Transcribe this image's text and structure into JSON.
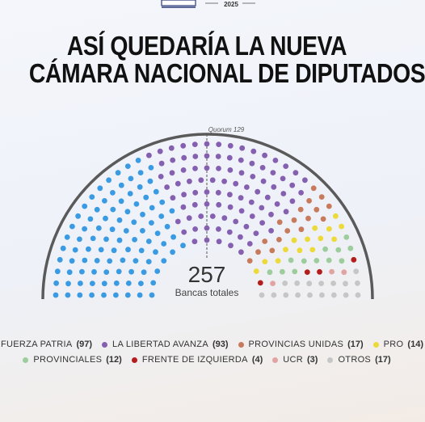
{
  "header": {
    "year": "2025"
  },
  "title_line1": "ASÍ QUEDARÍA LA NUEVA",
  "title_line2": "CÁMARA NACIONAL DE DIPUTADOS",
  "quorum_label": "Quorum 129",
  "total_number": "257",
  "total_label": "Bancas totales",
  "chart_data": {
    "type": "hemicycle",
    "total": 257,
    "quorum": 129,
    "rows": 9,
    "series": [
      {
        "name": "FUERZA PATRIA",
        "value": 97,
        "color": "#3a9be2"
      },
      {
        "name": "LA LIBERTAD AVANZA",
        "value": 93,
        "color": "#8560b0"
      },
      {
        "name": "PROVINCIAS UNIDAS",
        "value": 17,
        "color": "#c87a5c"
      },
      {
        "name": "PRO",
        "value": 14,
        "color": "#ecd93a"
      },
      {
        "name": "PROVINCIALES",
        "value": 12,
        "color": "#9dcd9c"
      },
      {
        "name": "FRENTE DE IZQUIERDA",
        "value": 4,
        "color": "#b51c1c"
      },
      {
        "name": "UCR",
        "value": 3,
        "color": "#e2a3a3"
      },
      {
        "name": "OTROS",
        "value": 17,
        "color": "#c6c6c6"
      }
    ]
  },
  "legend_rows": [
    [
      {
        "name": "FUERZA PATRIA",
        "count": "(97)",
        "color": "#3a9be2"
      },
      {
        "name": "LA LIBERTAD AVANZA",
        "count": "(93)",
        "color": "#8560b0"
      },
      {
        "name": "PROVINCIAS UNIDAS",
        "count": "(17)",
        "color": "#c87a5c"
      },
      {
        "name": "PRO",
        "count": "(14)",
        "color": "#ecd93a"
      }
    ],
    [
      {
        "name": "PROVINCIALES",
        "count": "(12)",
        "color": "#9dcd9c"
      },
      {
        "name": "FRENTE DE IZQUIERDA",
        "count": "(4)",
        "color": "#b51c1c"
      },
      {
        "name": "UCR",
        "count": "(3)",
        "color": "#e2a3a3"
      },
      {
        "name": "OTROS",
        "count": "(17)",
        "color": "#c6c6c6"
      }
    ]
  ]
}
